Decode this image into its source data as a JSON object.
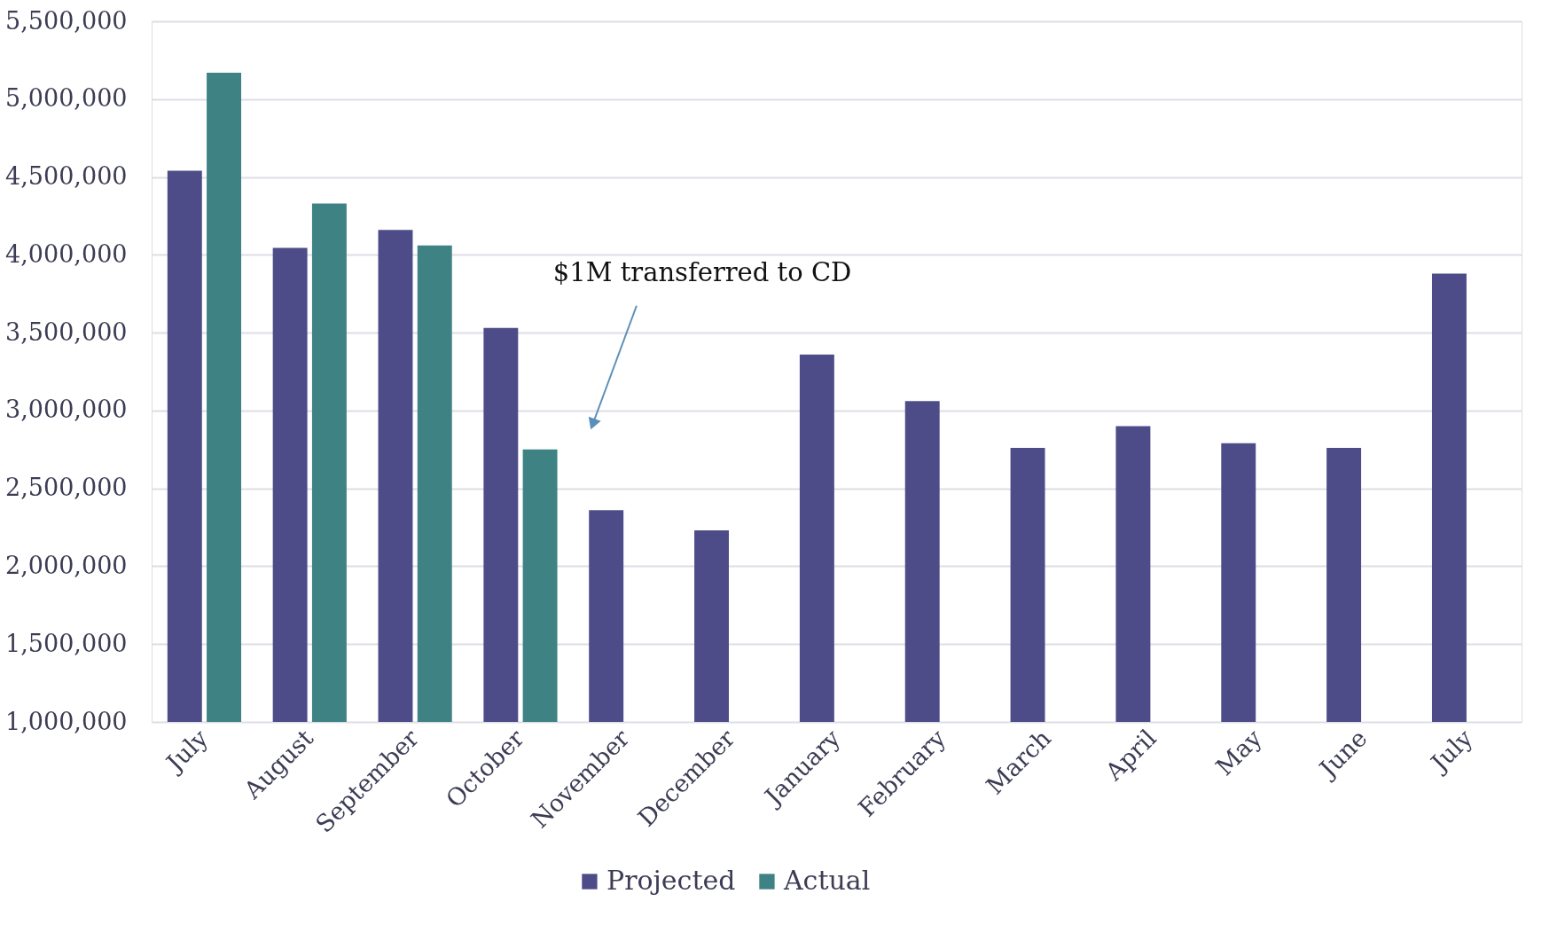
{
  "chart_data": {
    "type": "bar",
    "categories": [
      "July",
      "August",
      "September",
      "October",
      "November",
      "December",
      "January",
      "February",
      "March",
      "April",
      "May",
      "June",
      "July"
    ],
    "series": [
      {
        "name": "Projected",
        "color": "#4e4c88",
        "values": [
          4540000,
          4045000,
          4160000,
          3530000,
          2360000,
          2230000,
          3360000,
          3060000,
          2760000,
          2900000,
          2790000,
          2760000,
          3880000
        ]
      },
      {
        "name": "Actual",
        "color": "#3e8284",
        "values": [
          5170000,
          4330000,
          4060000,
          2750000,
          null,
          null,
          null,
          null,
          null,
          null,
          null,
          null,
          null
        ]
      }
    ],
    "ylim": [
      1000000,
      5500000
    ],
    "yticks": [
      {
        "value": 1000000,
        "label": "1,000,000"
      },
      {
        "value": 1500000,
        "label": "1,500,000"
      },
      {
        "value": 2000000,
        "label": "2,000,000"
      },
      {
        "value": 2500000,
        "label": "2,500,000"
      },
      {
        "value": 3000000,
        "label": "3,000,000"
      },
      {
        "value": 3500000,
        "label": "3,500,000"
      },
      {
        "value": 4000000,
        "label": "4,000,000"
      },
      {
        "value": 4500000,
        "label": "4,500,000"
      },
      {
        "value": 5000000,
        "label": "5,000,000"
      },
      {
        "value": 5500000,
        "label": "5,500,000"
      }
    ],
    "grid": "y",
    "legend": "bottom",
    "annotations": [
      "$1M transferred to CD"
    ]
  }
}
